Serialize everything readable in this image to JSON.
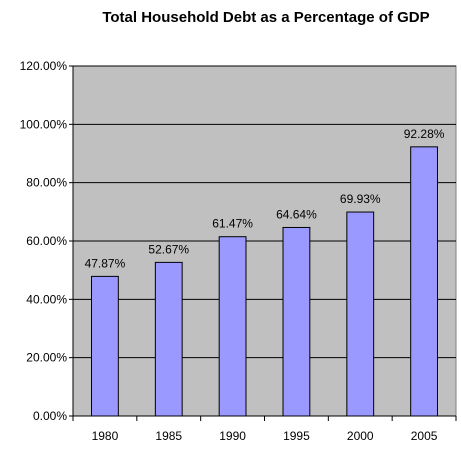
{
  "chart_data": {
    "type": "bar",
    "title": "Total Household Debt as a Percentage of GDP",
    "xlabel": "",
    "ylabel": "",
    "categories": [
      "1980",
      "1985",
      "1990",
      "1995",
      "2000",
      "2005"
    ],
    "values": [
      47.87,
      52.67,
      61.47,
      64.64,
      69.93,
      92.28
    ],
    "data_labels": [
      "47.87%",
      "52.67%",
      "61.47%",
      "64.64%",
      "69.93%",
      "92.28%"
    ],
    "ylim": [
      0,
      120
    ],
    "y_ticks": [
      0,
      20,
      40,
      60,
      80,
      100,
      120
    ],
    "y_tick_labels": [
      "0.00%",
      "20.00%",
      "40.00%",
      "60.00%",
      "80.00%",
      "100.00%",
      "120.00%"
    ],
    "grid": true,
    "legend": "none",
    "colors": {
      "plot_background": "#c0c0c0",
      "bar_fill": "#9999ff",
      "bar_stroke": "#000000",
      "gridline": "#000000"
    }
  }
}
